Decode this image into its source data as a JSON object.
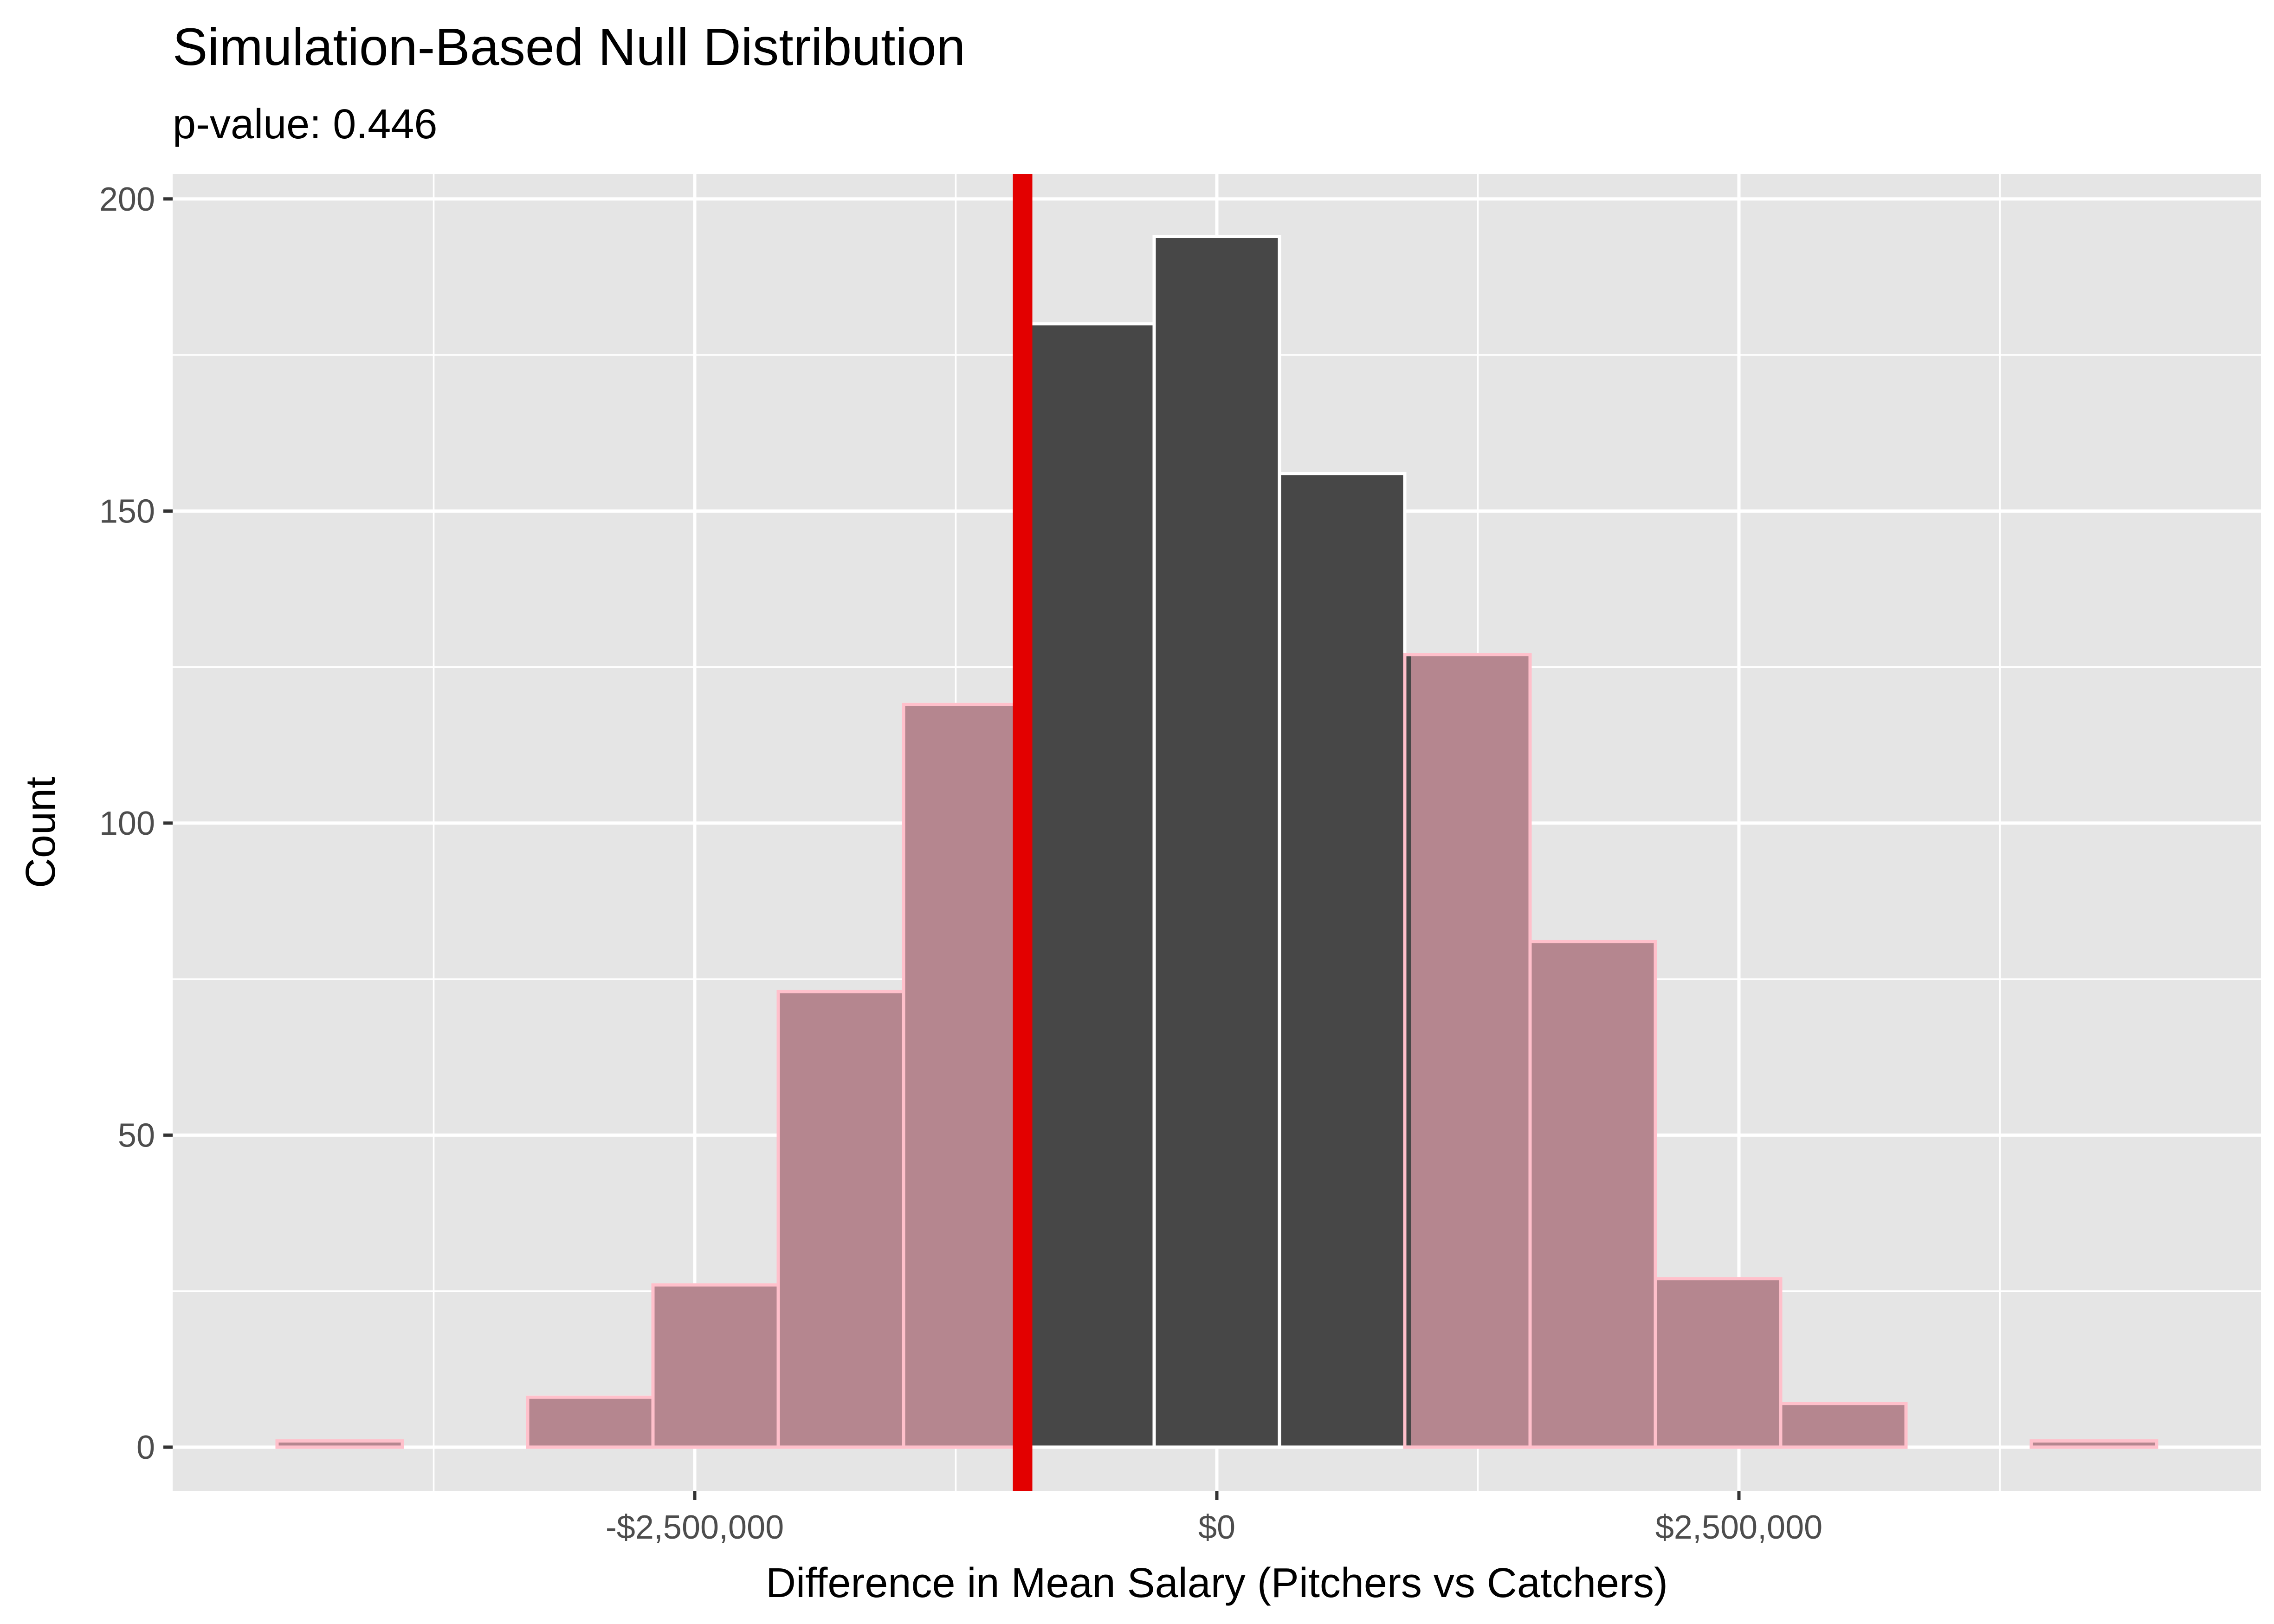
{
  "chart_data": {
    "type": "bar",
    "title": "Simulation-Based Null Distribution",
    "subtitle": "p-value: 0.446",
    "xlabel": "Difference in Mean Salary (Pitchers vs Catchers)",
    "ylabel": "Count",
    "xlim": [
      -5000000,
      5000000
    ],
    "ylim": [
      -7,
      204
    ],
    "bin_width": 600000,
    "bins": [
      {
        "center": -4200000,
        "count": 1
      },
      {
        "center": -3600000,
        "count": 0
      },
      {
        "center": -3000000,
        "count": 8
      },
      {
        "center": -2400000,
        "count": 26
      },
      {
        "center": -1800000,
        "count": 73
      },
      {
        "center": -1200000,
        "count": 119
      },
      {
        "center": -600000,
        "count": 180
      },
      {
        "center": 0,
        "count": 194
      },
      {
        "center": 600000,
        "count": 156
      },
      {
        "center": 1200000,
        "count": 127
      },
      {
        "center": 1800000,
        "count": 81
      },
      {
        "center": 2400000,
        "count": 27
      },
      {
        "center": 3000000,
        "count": 7
      },
      {
        "center": 3600000,
        "count": 0
      },
      {
        "center": 4200000,
        "count": 1
      }
    ],
    "observed_stat": -930000,
    "shade_direction": "both",
    "shaded_range": {
      "lower": -930000,
      "upper": 930000
    },
    "x_ticks": [
      {
        "value": -2500000,
        "label": "-$2,500,000"
      },
      {
        "value": 0,
        "label": "$0"
      },
      {
        "value": 2500000,
        "label": "$2,500,000"
      }
    ],
    "x_minor_ticks": [
      -3750000,
      -1250000,
      1250000,
      3750000
    ],
    "y_ticks": [
      {
        "value": 0,
        "label": "0"
      },
      {
        "value": 50,
        "label": "50"
      },
      {
        "value": 100,
        "label": "100"
      },
      {
        "value": 150,
        "label": "150"
      },
      {
        "value": 200,
        "label": "200"
      }
    ],
    "y_minor_ticks": [
      25,
      75,
      125,
      175
    ],
    "grid": true,
    "legend": "none",
    "colors": {
      "panel": "#e5e5e5",
      "grid": "#ffffff",
      "bar_unshaded": "#474747",
      "bar_shaded": "#b5868f",
      "bar_outline": "#ffffff",
      "shaded_outline": "#ffc0cb",
      "observed_line": "#e30000"
    }
  }
}
